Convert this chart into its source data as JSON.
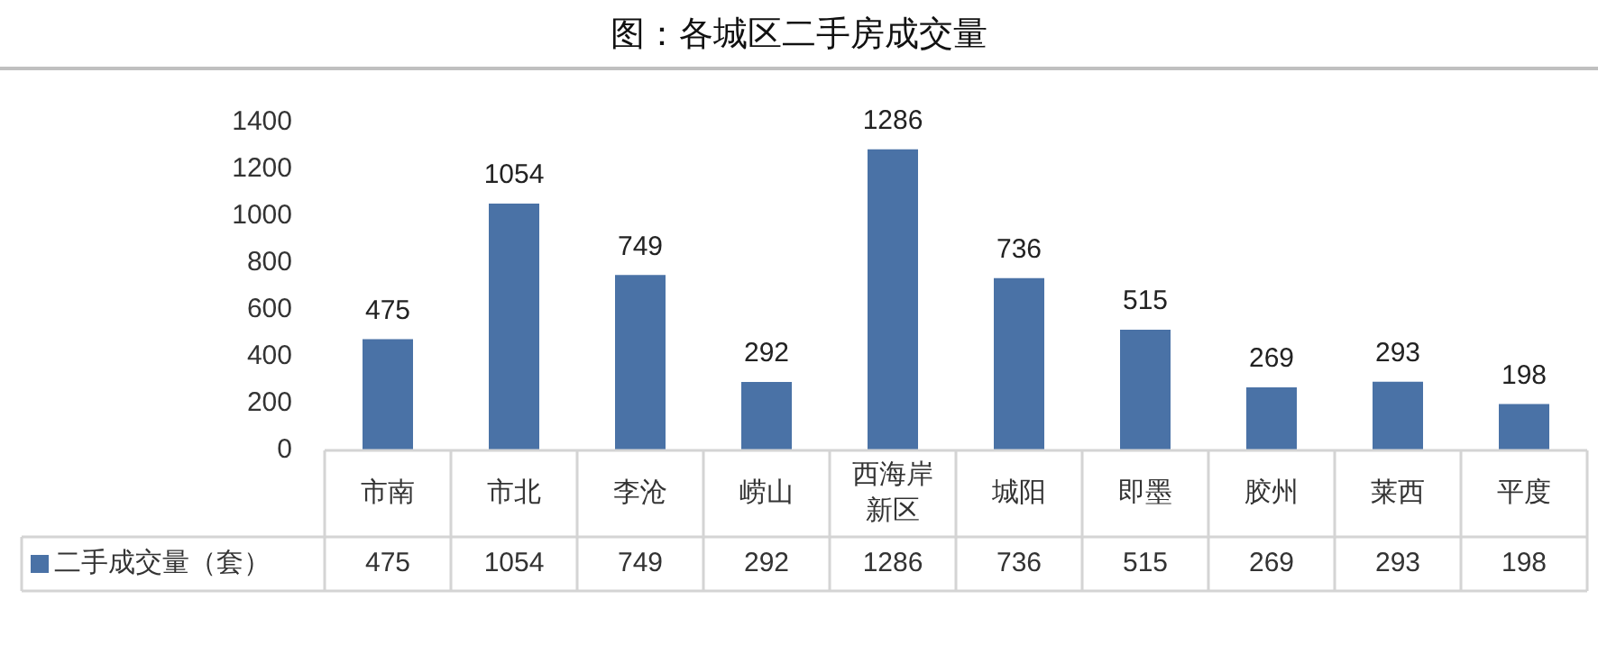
{
  "chart_data": {
    "type": "bar",
    "title": "图：各城区二手房成交量",
    "categories": [
      "市南",
      "市北",
      "李沧",
      "崂山",
      "西海岸新区",
      "城阳",
      "即墨",
      "胶州",
      "莱西",
      "平度"
    ],
    "series": [
      {
        "name": "二手成交量（套）",
        "color": "#4a72a6",
        "values": [
          475,
          1054,
          749,
          292,
          1286,
          736,
          515,
          269,
          293,
          198
        ],
        "value_labels": [
          "475",
          "1054",
          "749",
          "292",
          "1286",
          "736",
          "515",
          "269",
          "293",
          "198"
        ]
      }
    ],
    "ylim": [
      0,
      1400
    ],
    "yticks": [
      0,
      200,
      400,
      600,
      800,
      1000,
      1200,
      1400
    ],
    "data_labels": true
  }
}
